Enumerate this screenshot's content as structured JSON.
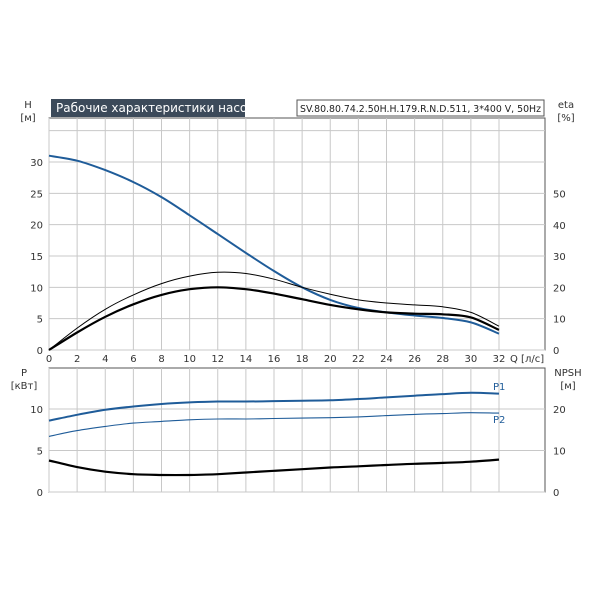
{
  "chart_data": [
    {
      "type": "line",
      "title": "Рабочие характеристики насоса",
      "subtitle": "SV.80.80.74.2.50H.H.179.R.N.D.511, 3*400 V, 50Hz",
      "xlabel": "Q [л/с]",
      "ylabel": "H",
      "ylabel_unit": "[м]",
      "ylabel_right": "eta",
      "ylabel_right_unit": "[%]",
      "xlim": [
        0,
        32
      ],
      "ylim": [
        0,
        35
      ],
      "ylim_right": [
        0,
        60
      ],
      "x_ticks": [
        0,
        2,
        4,
        6,
        8,
        10,
        12,
        14,
        16,
        18,
        20,
        22,
        24,
        26,
        28,
        30,
        32
      ],
      "y_ticks": [
        0,
        5,
        10,
        15,
        20,
        25,
        30
      ],
      "y_ticks_right": [
        0,
        10,
        20,
        30,
        40,
        50
      ],
      "grid": true,
      "series": [
        {
          "role": "head",
          "axis": "left",
          "color": "#1f5c99",
          "x": [
            0,
            2,
            4,
            6,
            8,
            10,
            12,
            14,
            16,
            18,
            20,
            22,
            24,
            26,
            28,
            30,
            32
          ],
          "values": [
            31.0,
            30.2,
            28.7,
            26.8,
            24.4,
            21.5,
            18.5,
            15.5,
            12.6,
            10.0,
            8.0,
            6.7,
            6.0,
            5.5,
            5.1,
            4.4,
            2.6
          ]
        },
        {
          "role": "efficiency-1",
          "axis": "left",
          "color": "#000000",
          "x": [
            0,
            2,
            4,
            6,
            8,
            10,
            12,
            14,
            16,
            18,
            20,
            22,
            24,
            26,
            28,
            30,
            32
          ],
          "values": [
            0.0,
            3.5,
            6.5,
            8.8,
            10.6,
            11.8,
            12.4,
            12.2,
            11.3,
            10.0,
            8.9,
            8.0,
            7.5,
            7.2,
            6.9,
            6.0,
            3.8
          ]
        },
        {
          "role": "efficiency-2",
          "axis": "left",
          "color": "#000000",
          "x": [
            0,
            2,
            4,
            6,
            8,
            10,
            12,
            14,
            16,
            18,
            20,
            22,
            24,
            26,
            28,
            30,
            32
          ],
          "values": [
            0.0,
            2.8,
            5.3,
            7.3,
            8.8,
            9.7,
            10.0,
            9.7,
            9.0,
            8.1,
            7.2,
            6.5,
            6.0,
            5.8,
            5.7,
            5.2,
            3.2
          ]
        }
      ]
    },
    {
      "type": "line",
      "ylabel": "P",
      "ylabel_unit": "[кВт]",
      "ylabel_right": "NPSH",
      "ylabel_right_unit": "[м]",
      "xlim": [
        0,
        32
      ],
      "ylim": [
        0,
        14
      ],
      "ylim_right": [
        0,
        28
      ],
      "y_ticks": [
        0,
        5,
        10
      ],
      "y_ticks_right": [
        0,
        10,
        20
      ],
      "grid": true,
      "series": [
        {
          "name": "P1",
          "axis": "left",
          "color": "#1f5c99",
          "x": [
            0,
            2,
            4,
            6,
            8,
            10,
            12,
            14,
            16,
            18,
            20,
            22,
            24,
            26,
            28,
            30,
            32
          ],
          "values": [
            8.6,
            9.3,
            9.9,
            10.3,
            10.6,
            10.8,
            10.9,
            10.9,
            10.95,
            11.0,
            11.05,
            11.2,
            11.4,
            11.6,
            11.8,
            11.95,
            11.85
          ]
        },
        {
          "name": "P2",
          "axis": "left",
          "color": "#1f5c99",
          "x": [
            0,
            2,
            4,
            6,
            8,
            10,
            12,
            14,
            16,
            18,
            20,
            22,
            24,
            26,
            28,
            30,
            32
          ],
          "values": [
            6.7,
            7.4,
            7.9,
            8.3,
            8.5,
            8.7,
            8.8,
            8.8,
            8.85,
            8.9,
            8.95,
            9.05,
            9.2,
            9.35,
            9.45,
            9.55,
            9.5
          ]
        },
        {
          "role": "npsh",
          "axis": "right",
          "color": "#000000",
          "x": [
            0,
            2,
            4,
            6,
            8,
            10,
            12,
            14,
            16,
            18,
            20,
            22,
            24,
            26,
            28,
            30,
            32
          ],
          "values": [
            7.6,
            6.0,
            4.9,
            4.3,
            4.1,
            4.1,
            4.3,
            4.7,
            5.1,
            5.5,
            5.9,
            6.2,
            6.5,
            6.8,
            7.0,
            7.3,
            7.8
          ]
        }
      ]
    }
  ]
}
